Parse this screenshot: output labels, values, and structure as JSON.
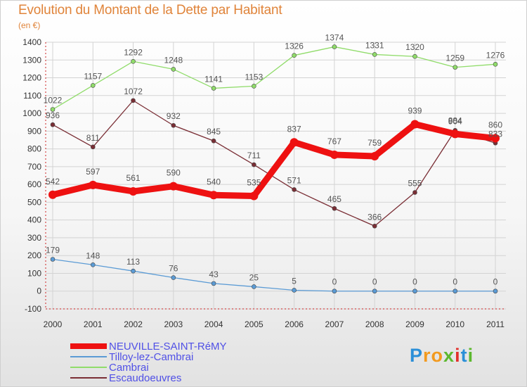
{
  "title": "Evolution du Montant de la Dette par Habitant",
  "unit_label": "(en €)",
  "logo": {
    "text": "Proxiti",
    "letters": [
      {
        "ch": "P",
        "color": "#2b8fd8"
      },
      {
        "ch": "r",
        "color": "#f29a1f"
      },
      {
        "ch": "o",
        "color": "#f29a1f"
      },
      {
        "ch": "x",
        "color": "#5cb82e"
      },
      {
        "ch": "i",
        "color": "#e2302b"
      },
      {
        "ch": "t",
        "color": "#2b8fd8"
      },
      {
        "ch": "i",
        "color": "#5cb82e"
      }
    ]
  },
  "chart_data": {
    "type": "line",
    "title": "Evolution du Montant de la Dette par Habitant",
    "ylabel": "(en €)",
    "xlabel": "",
    "x": [
      "2000",
      "2001",
      "2002",
      "2003",
      "2004",
      "2005",
      "2006",
      "2007",
      "2008",
      "2009",
      "2010",
      "2011"
    ],
    "ylim": [
      -100,
      1400
    ],
    "yticks": [
      -100,
      0,
      100,
      200,
      300,
      400,
      500,
      600,
      700,
      800,
      900,
      1000,
      1100,
      1200,
      1300,
      1400
    ],
    "grid": true,
    "legend_position": "bottom-left",
    "series": [
      {
        "name": "NEUVILLE-SAINT-RéMY",
        "color": "#ee1111",
        "values": [
          542,
          597,
          561,
          590,
          540,
          535,
          837,
          767,
          759,
          939,
          884,
          860
        ]
      },
      {
        "name": "Tilloy-lez-Cambrai",
        "color": "#5b9bd5",
        "values": [
          179,
          148,
          113,
          76,
          43,
          25,
          5,
          0,
          0,
          0,
          0,
          0
        ]
      },
      {
        "name": "Cambrai",
        "color": "#90dc6a",
        "values": [
          1022,
          1157,
          1292,
          1248,
          1141,
          1153,
          1326,
          1374,
          1331,
          1320,
          1259,
          1276
        ]
      },
      {
        "name": "Escaudoeuvres",
        "color": "#7a2e35",
        "values": [
          936,
          811,
          1072,
          932,
          845,
          711,
          571,
          465,
          366,
          555,
          904,
          833
        ]
      }
    ]
  }
}
